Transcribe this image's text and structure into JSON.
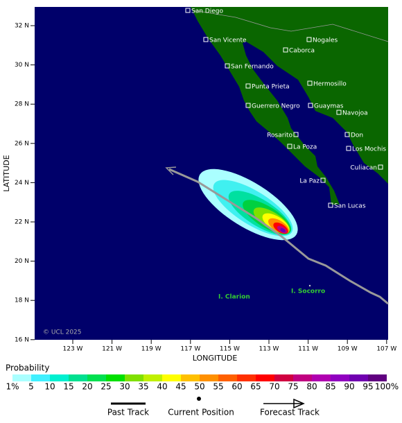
{
  "map": {
    "latitude_ticks": [
      "32 N",
      "30 N",
      "28 N",
      "26 N",
      "24 N",
      "22 N",
      "20 N",
      "18 N",
      "16 N"
    ],
    "longitude_ticks": [
      "123 W",
      "121 W",
      "119 W",
      "117 W",
      "115 W",
      "113 W",
      "111 W",
      "109 W",
      "107 W"
    ],
    "axis_labels": {
      "y": "LATITUDE",
      "x": "LONGITUDE"
    },
    "cities": [
      "San Diego",
      "San Vicente",
      "San Fernando",
      "Punta Prieta",
      "Guerrero Negro",
      "Nogales",
      "Caborca",
      "Hermosillo",
      "Guaymas",
      "Navojoa",
      "Rosarito",
      "Don",
      "La Poza",
      "Los Mochis",
      "Culiacan",
      "La Paz",
      "San Lucas"
    ],
    "islands": [
      "I. Clarion",
      "I. Socorro"
    ],
    "credit": "© UCL 2025"
  },
  "legend": {
    "title": "Probability",
    "labels": [
      "1%",
      "5",
      "10",
      "15",
      "20",
      "25",
      "30",
      "35",
      "40",
      "45",
      "50",
      "55",
      "60",
      "65",
      "70",
      "75",
      "80",
      "85",
      "90",
      "95",
      "100%"
    ],
    "items": [
      "Past Track",
      "Current Position",
      "Forecast Track"
    ]
  }
}
